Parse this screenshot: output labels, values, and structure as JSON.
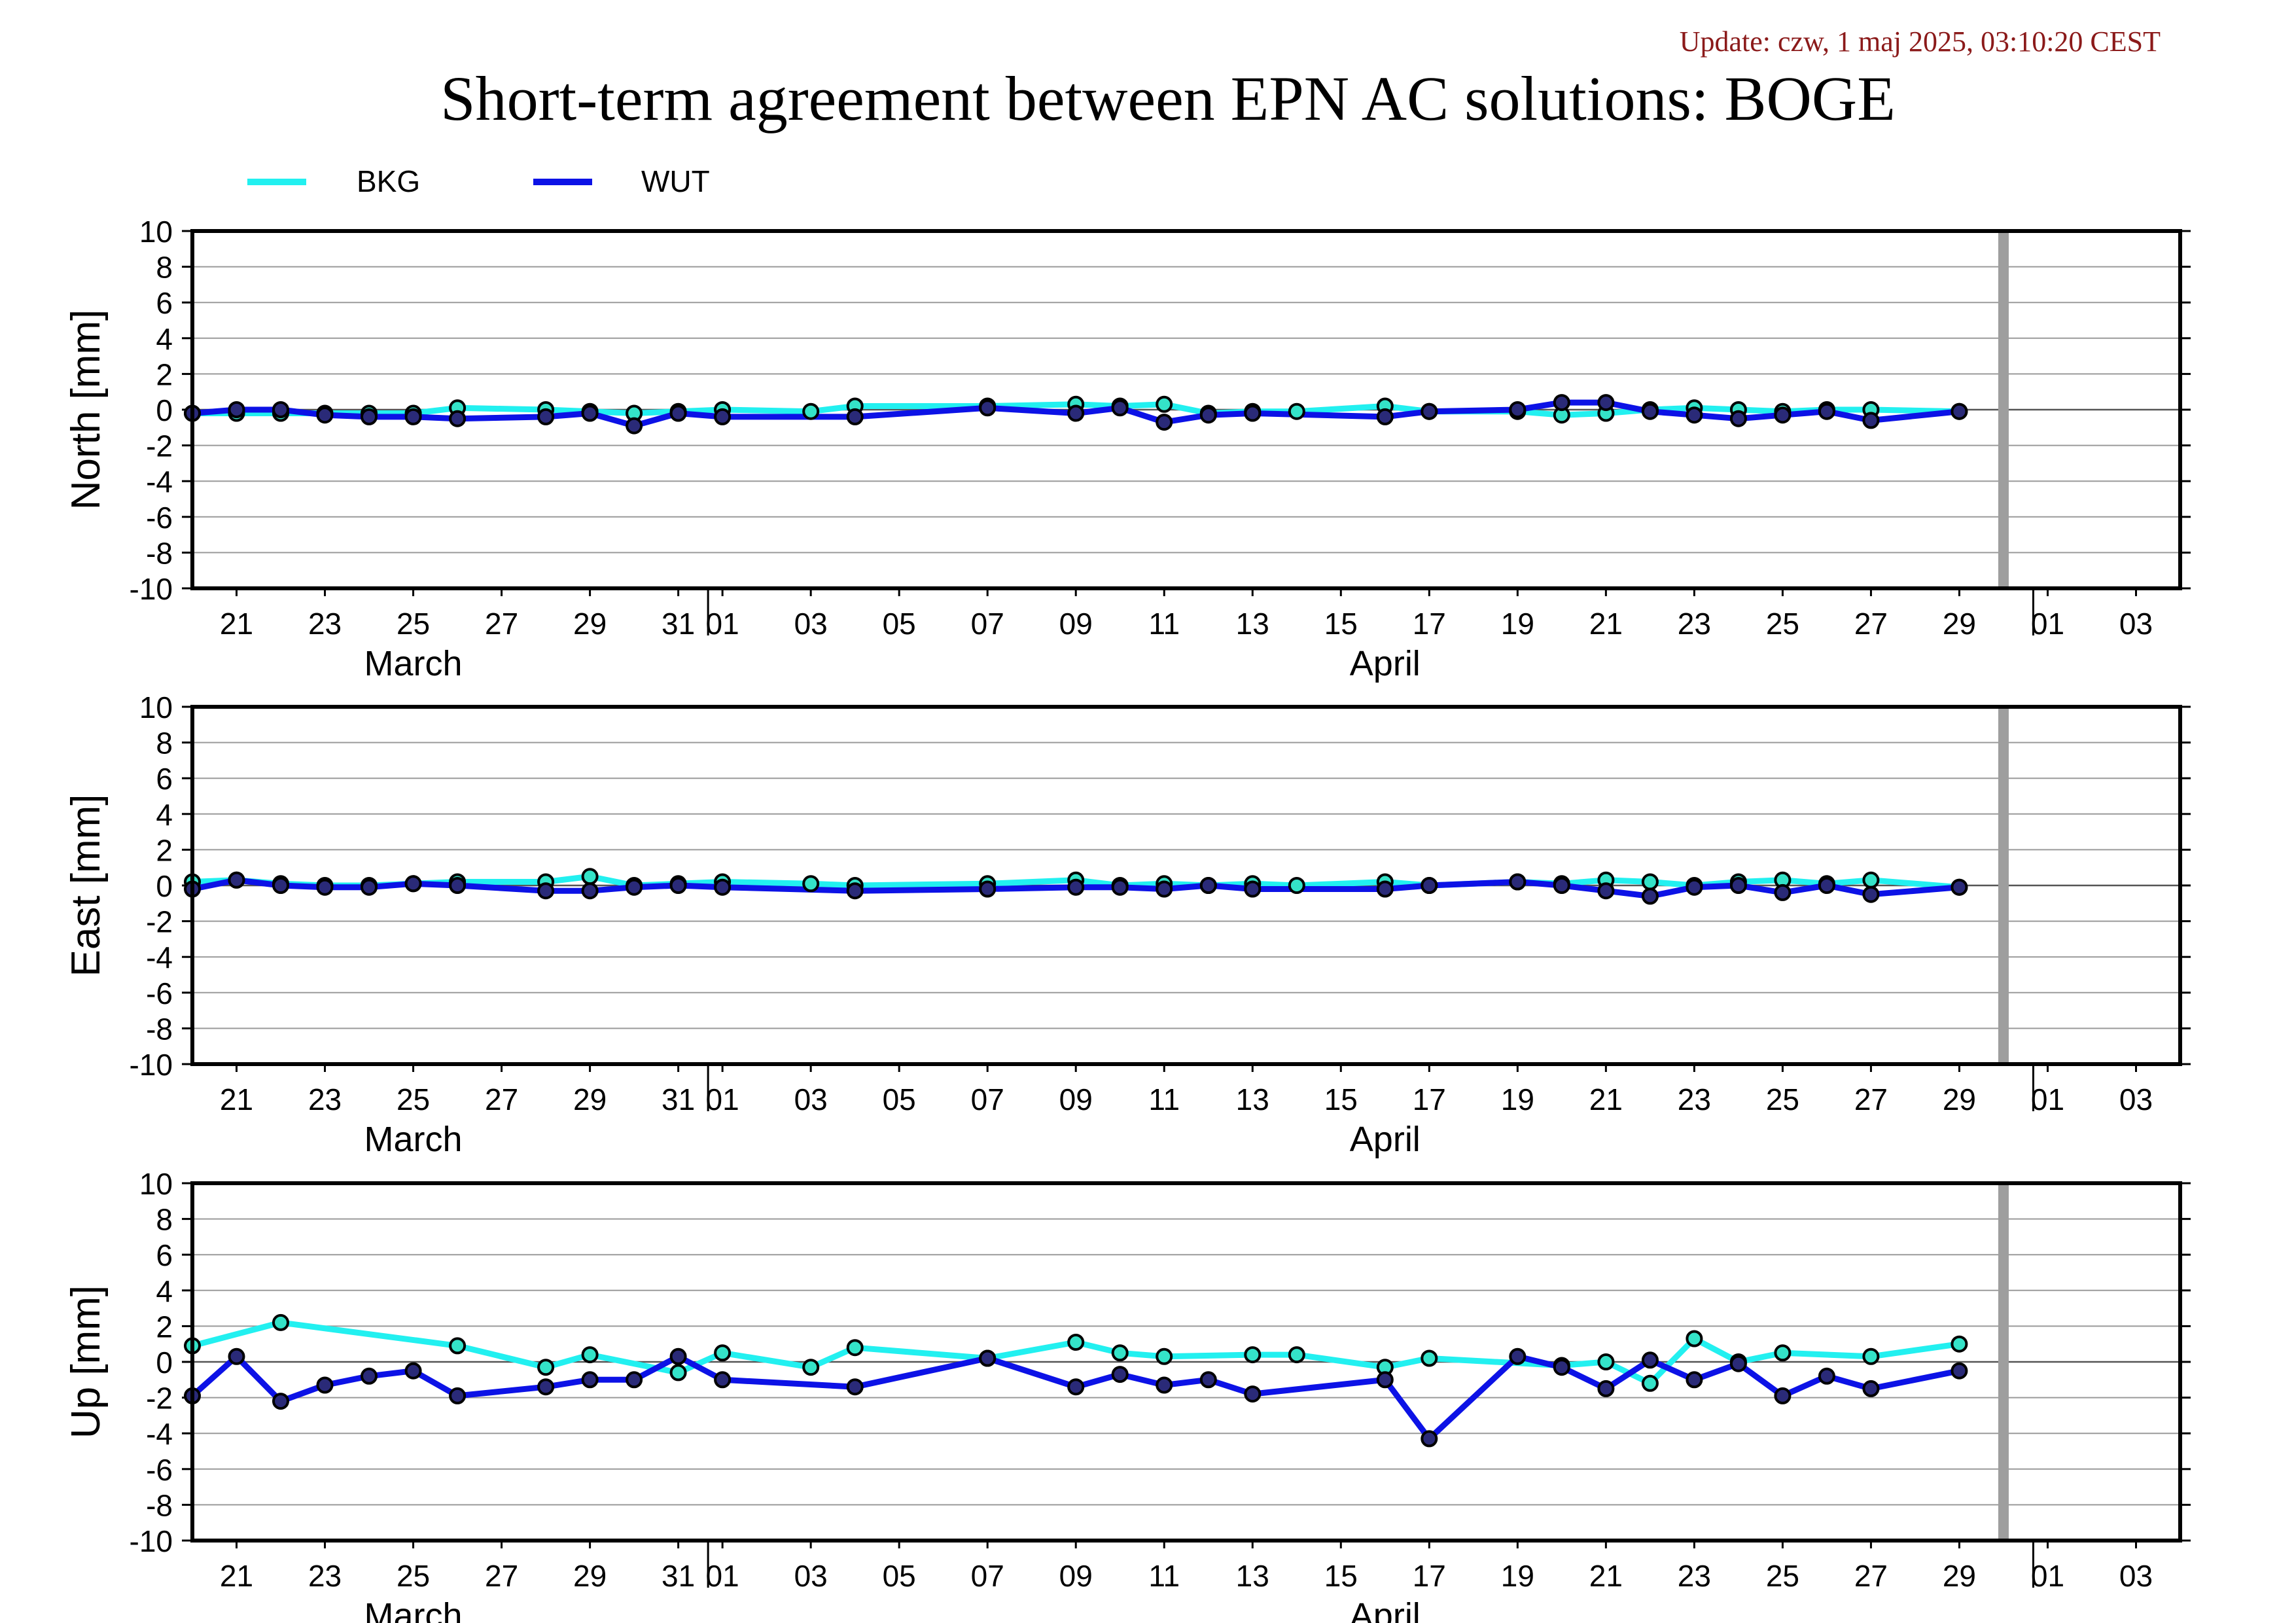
{
  "update_text": "Update: czw, 1 maj 2025, 03:10:20 CEST",
  "title": "Short-term agreement between EPN AC solutions: BOGE",
  "colors": {
    "update_text": "#8b1a1a",
    "bkg": "#22f0f0",
    "wut": "#0c12e6",
    "marker_edge": "#000000",
    "marker_wut_fill": "#2a2a78",
    "marker_bkg_fill": "#34e3c8",
    "grid": "#9a9a9a",
    "zero_line": "#555555",
    "gap_bar": "#9e9e9e"
  },
  "legend": [
    {
      "name": "BKG",
      "color_key": "bkg"
    },
    {
      "name": "WUT",
      "color_key": "wut"
    }
  ],
  "x_axis": {
    "ticks": [
      {
        "date": "2025-03-21",
        "label": "21"
      },
      {
        "date": "2025-03-23",
        "label": "23"
      },
      {
        "date": "2025-03-25",
        "label": "25"
      },
      {
        "date": "2025-03-27",
        "label": "27"
      },
      {
        "date": "2025-03-29",
        "label": "29"
      },
      {
        "date": "2025-03-31",
        "label": "31"
      },
      {
        "date": "2025-04-01",
        "label": "01"
      },
      {
        "date": "2025-04-03",
        "label": "03"
      },
      {
        "date": "2025-04-05",
        "label": "05"
      },
      {
        "date": "2025-04-07",
        "label": "07"
      },
      {
        "date": "2025-04-09",
        "label": "09"
      },
      {
        "date": "2025-04-11",
        "label": "11"
      },
      {
        "date": "2025-04-13",
        "label": "13"
      },
      {
        "date": "2025-04-15",
        "label": "15"
      },
      {
        "date": "2025-04-17",
        "label": "17"
      },
      {
        "date": "2025-04-19",
        "label": "19"
      },
      {
        "date": "2025-04-21",
        "label": "21"
      },
      {
        "date": "2025-04-23",
        "label": "23"
      },
      {
        "date": "2025-04-25",
        "label": "25"
      },
      {
        "date": "2025-04-27",
        "label": "27"
      },
      {
        "date": "2025-04-29",
        "label": "29"
      },
      {
        "date": "2025-05-01",
        "label": "01"
      },
      {
        "date": "2025-05-03",
        "label": "03"
      }
    ],
    "months": [
      {
        "date": "2025-03-25",
        "label": "March"
      },
      {
        "date": "2025-04-16",
        "label": "April"
      }
    ],
    "month_boundaries": [
      "2025-04-01",
      "2025-05-01"
    ],
    "range": [
      "2025-03-20",
      "2025-05-04"
    ]
  },
  "chart_data": [
    {
      "type": "line",
      "ylabel": "North [mm]",
      "ylim": [
        -10,
        10
      ],
      "yticks": [
        10,
        8,
        6,
        4,
        2,
        0,
        -2,
        -4,
        -6,
        -8,
        -10
      ],
      "grid": true,
      "gap_marker": "2025-04-30",
      "series": [
        {
          "name": "BKG",
          "x": [
            "2025-03-20",
            "2025-03-21",
            "2025-03-22",
            "2025-03-23",
            "2025-03-24",
            "2025-03-25",
            "2025-03-26",
            "2025-03-28",
            "2025-03-29",
            "2025-03-30",
            "2025-03-31",
            "2025-04-01",
            "2025-04-03",
            "2025-04-04",
            "2025-04-07",
            "2025-04-09",
            "2025-04-10",
            "2025-04-11",
            "2025-04-12",
            "2025-04-13",
            "2025-04-14",
            "2025-04-16",
            "2025-04-17",
            "2025-04-19",
            "2025-04-20",
            "2025-04-21",
            "2025-04-22",
            "2025-04-23",
            "2025-04-24",
            "2025-04-25",
            "2025-04-26",
            "2025-04-27",
            "2025-04-29"
          ],
          "values": [
            -0.2,
            -0.2,
            -0.2,
            -0.2,
            -0.2,
            -0.2,
            0.1,
            0.0,
            -0.1,
            -0.2,
            -0.1,
            0.0,
            -0.1,
            0.2,
            0.2,
            0.3,
            0.2,
            0.3,
            -0.2,
            -0.1,
            -0.1,
            0.2,
            -0.1,
            -0.1,
            -0.3,
            -0.2,
            0.0,
            0.1,
            0.0,
            -0.1,
            0.0,
            0.0,
            -0.1
          ]
        },
        {
          "name": "WUT",
          "x": [
            "2025-03-20",
            "2025-03-21",
            "2025-03-22",
            "2025-03-23",
            "2025-03-24",
            "2025-03-25",
            "2025-03-26",
            "2025-03-28",
            "2025-03-29",
            "2025-03-30",
            "2025-03-31",
            "2025-04-01",
            "2025-04-04",
            "2025-04-07",
            "2025-04-09",
            "2025-04-10",
            "2025-04-11",
            "2025-04-12",
            "2025-04-13",
            "2025-04-16",
            "2025-04-17",
            "2025-04-19",
            "2025-04-20",
            "2025-04-21",
            "2025-04-22",
            "2025-04-23",
            "2025-04-24",
            "2025-04-25",
            "2025-04-26",
            "2025-04-27",
            "2025-04-29"
          ],
          "values": [
            -0.2,
            0.0,
            0.0,
            -0.3,
            -0.4,
            -0.4,
            -0.5,
            -0.4,
            -0.2,
            -0.9,
            -0.2,
            -0.4,
            -0.4,
            0.1,
            -0.2,
            0.1,
            -0.7,
            -0.3,
            -0.2,
            -0.4,
            -0.1,
            0.0,
            0.4,
            0.4,
            -0.1,
            -0.3,
            -0.5,
            -0.3,
            -0.1,
            -0.6,
            -0.1
          ]
        }
      ]
    },
    {
      "type": "line",
      "ylabel": "East [mm]",
      "ylim": [
        -10,
        10
      ],
      "yticks": [
        10,
        8,
        6,
        4,
        2,
        0,
        -2,
        -4,
        -6,
        -8,
        -10
      ],
      "grid": true,
      "gap_marker": "2025-04-30",
      "series": [
        {
          "name": "BKG",
          "x": [
            "2025-03-20",
            "2025-03-21",
            "2025-03-22",
            "2025-03-23",
            "2025-03-24",
            "2025-03-25",
            "2025-03-26",
            "2025-03-28",
            "2025-03-29",
            "2025-03-30",
            "2025-03-31",
            "2025-04-01",
            "2025-04-03",
            "2025-04-04",
            "2025-04-07",
            "2025-04-09",
            "2025-04-10",
            "2025-04-11",
            "2025-04-12",
            "2025-04-13",
            "2025-04-14",
            "2025-04-16",
            "2025-04-17",
            "2025-04-19",
            "2025-04-20",
            "2025-04-21",
            "2025-04-22",
            "2025-04-23",
            "2025-04-24",
            "2025-04-25",
            "2025-04-26",
            "2025-04-27",
            "2025-04-29"
          ],
          "values": [
            0.2,
            0.3,
            0.1,
            0.0,
            0.0,
            0.1,
            0.2,
            0.2,
            0.5,
            0.0,
            0.1,
            0.2,
            0.1,
            0.0,
            0.1,
            0.3,
            0.0,
            0.1,
            0.0,
            0.1,
            0.0,
            0.2,
            0.0,
            0.2,
            0.1,
            0.3,
            0.2,
            0.0,
            0.2,
            0.3,
            0.1,
            0.3,
            -0.1
          ]
        },
        {
          "name": "WUT",
          "x": [
            "2025-03-20",
            "2025-03-21",
            "2025-03-22",
            "2025-03-23",
            "2025-03-24",
            "2025-03-25",
            "2025-03-26",
            "2025-03-28",
            "2025-03-29",
            "2025-03-30",
            "2025-03-31",
            "2025-04-01",
            "2025-04-04",
            "2025-04-07",
            "2025-04-09",
            "2025-04-10",
            "2025-04-11",
            "2025-04-12",
            "2025-04-13",
            "2025-04-16",
            "2025-04-17",
            "2025-04-19",
            "2025-04-20",
            "2025-04-21",
            "2025-04-22",
            "2025-04-23",
            "2025-04-24",
            "2025-04-25",
            "2025-04-26",
            "2025-04-27",
            "2025-04-29"
          ],
          "values": [
            -0.2,
            0.3,
            0.0,
            -0.1,
            -0.1,
            0.1,
            0.0,
            -0.3,
            -0.3,
            -0.1,
            0.0,
            -0.1,
            -0.3,
            -0.2,
            -0.1,
            -0.1,
            -0.2,
            0.0,
            -0.2,
            -0.2,
            0.0,
            0.2,
            0.0,
            -0.3,
            -0.6,
            -0.1,
            0.0,
            -0.4,
            0.0,
            -0.5,
            -0.1
          ]
        }
      ]
    },
    {
      "type": "line",
      "ylabel": "Up [mm]",
      "ylim": [
        -10,
        10
      ],
      "yticks": [
        10,
        8,
        6,
        4,
        2,
        0,
        -2,
        -4,
        -6,
        -8,
        -10
      ],
      "grid": true,
      "gap_marker": "2025-04-30",
      "series": [
        {
          "name": "BKG",
          "x": [
            "2025-03-20",
            "2025-03-22",
            "2025-03-26",
            "2025-03-28",
            "2025-03-29",
            "2025-03-31",
            "2025-04-01",
            "2025-04-03",
            "2025-04-04",
            "2025-04-07",
            "2025-04-09",
            "2025-04-10",
            "2025-04-11",
            "2025-04-13",
            "2025-04-14",
            "2025-04-16",
            "2025-04-17",
            "2025-04-20",
            "2025-04-21",
            "2025-04-22",
            "2025-04-23",
            "2025-04-24",
            "2025-04-25",
            "2025-04-27",
            "2025-04-29"
          ],
          "values": [
            0.9,
            2.2,
            0.9,
            -0.3,
            0.4,
            -0.6,
            0.5,
            -0.3,
            0.8,
            0.2,
            1.1,
            0.5,
            0.3,
            0.4,
            0.4,
            -0.3,
            0.2,
            -0.2,
            0.0,
            -1.2,
            1.3,
            0.0,
            0.5,
            0.3,
            1.0
          ]
        },
        {
          "name": "WUT",
          "x": [
            "2025-03-20",
            "2025-03-21",
            "2025-03-22",
            "2025-03-23",
            "2025-03-24",
            "2025-03-25",
            "2025-03-26",
            "2025-03-28",
            "2025-03-29",
            "2025-03-30",
            "2025-03-31",
            "2025-04-01",
            "2025-04-04",
            "2025-04-07",
            "2025-04-09",
            "2025-04-10",
            "2025-04-11",
            "2025-04-12",
            "2025-04-13",
            "2025-04-16",
            "2025-04-17",
            "2025-04-19",
            "2025-04-20",
            "2025-04-21",
            "2025-04-22",
            "2025-04-23",
            "2025-04-24",
            "2025-04-25",
            "2025-04-26",
            "2025-04-27",
            "2025-04-29"
          ],
          "values": [
            -1.9,
            0.3,
            -2.2,
            -1.3,
            -0.8,
            -0.5,
            -1.9,
            -1.4,
            -1.0,
            -1.0,
            0.3,
            -1.0,
            -1.4,
            0.2,
            -1.4,
            -0.7,
            -1.3,
            -1.0,
            -1.8,
            -1.0,
            -4.3,
            0.3,
            -0.3,
            -1.5,
            0.1,
            -1.0,
            -0.1,
            -1.9,
            -0.8,
            -1.5,
            -0.5
          ]
        }
      ]
    }
  ]
}
